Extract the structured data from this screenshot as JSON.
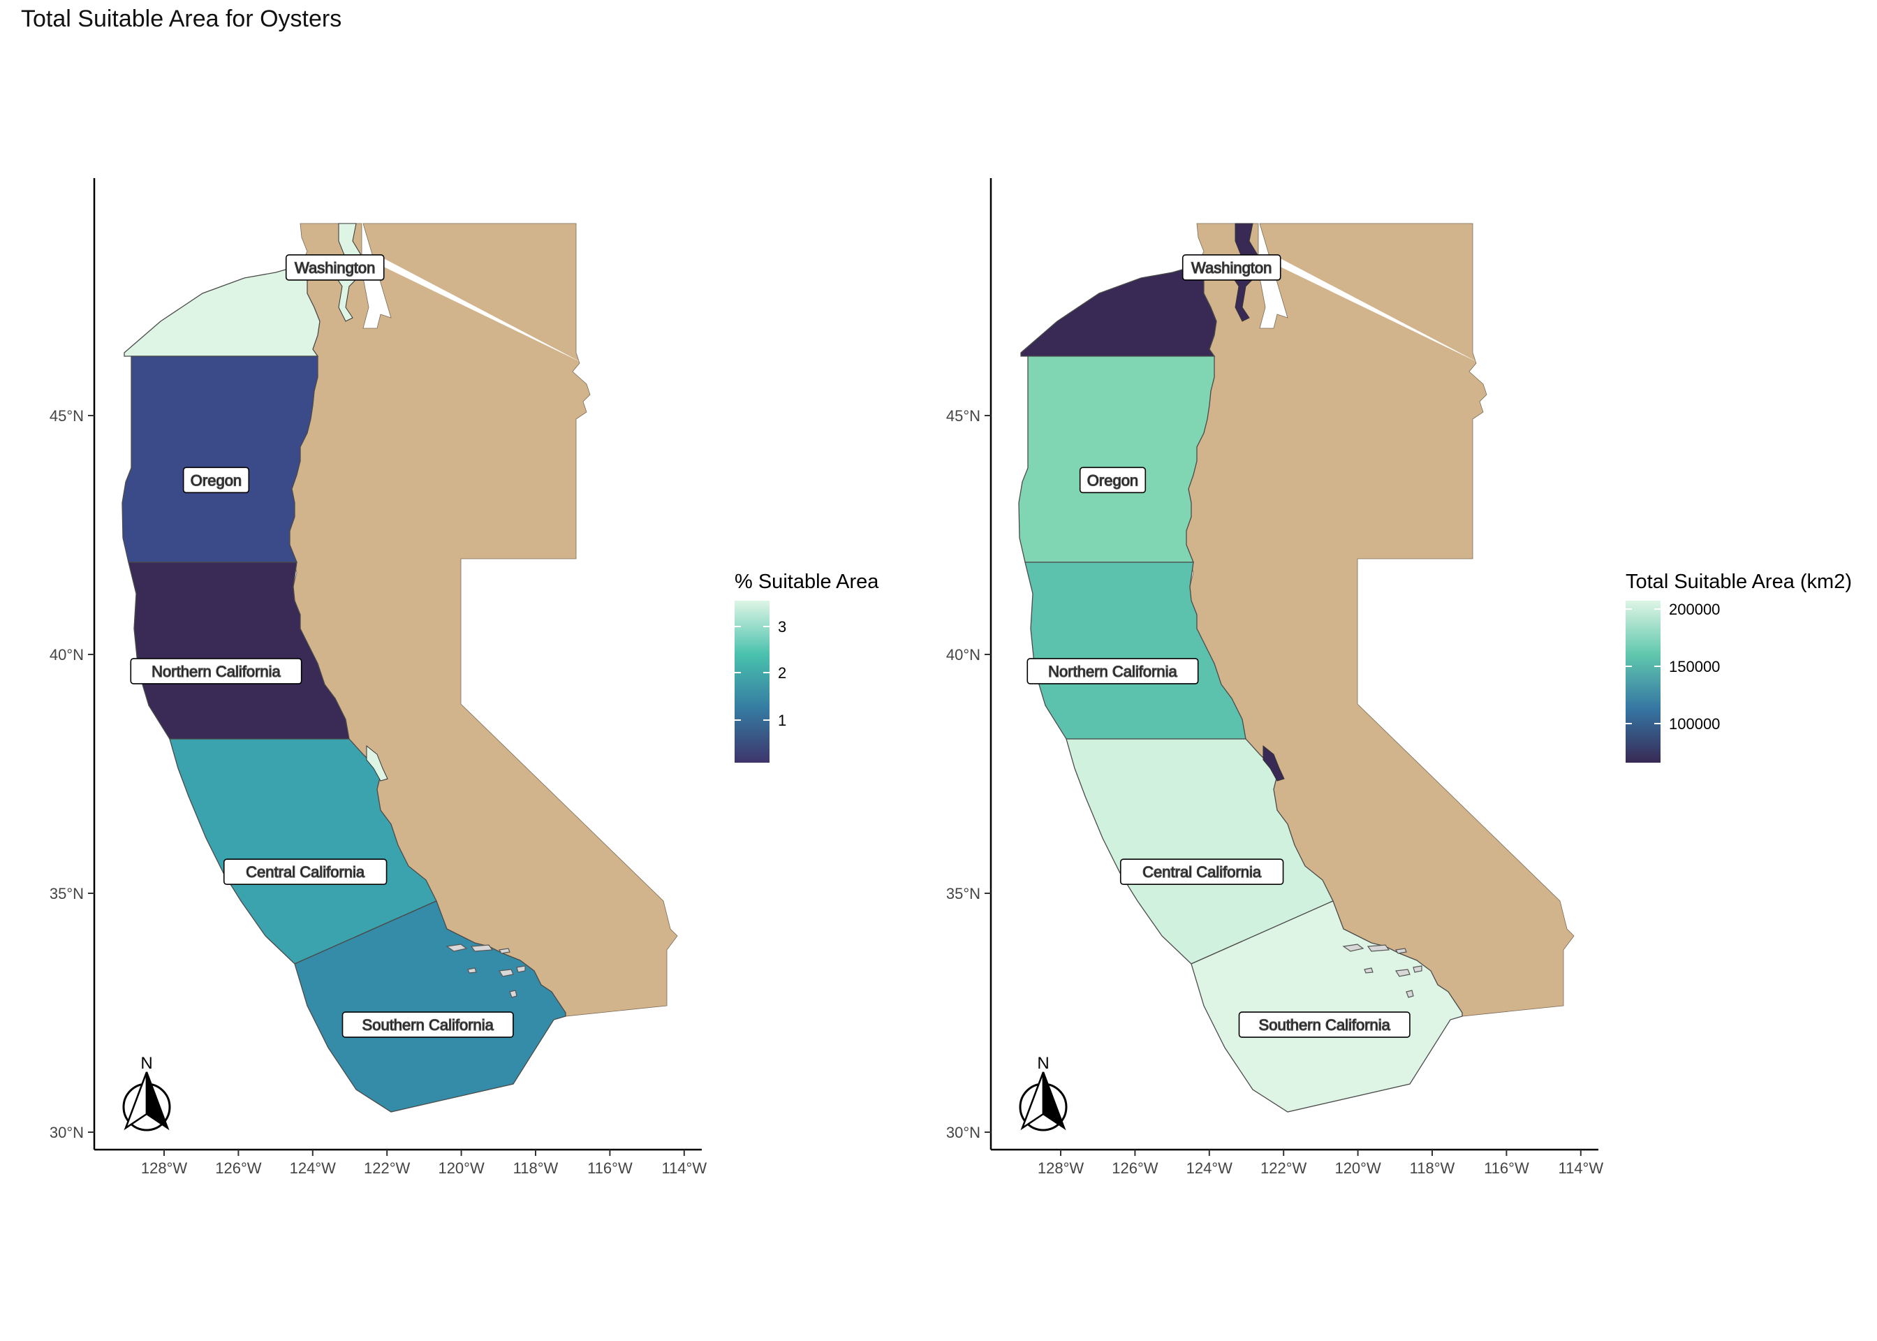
{
  "title": "Total Suitable Area for Oysters",
  "land_color": "#D2B48C",
  "x_ticks": [
    "128°W",
    "126°W",
    "124°W",
    "122°W",
    "120°W",
    "118°W",
    "116°W",
    "114°W"
  ],
  "y_ticks": [
    "45°N",
    "40°N",
    "35°N",
    "30°N"
  ],
  "north_label": "N",
  "regions": [
    "Washington",
    "Oregon",
    "Northern California",
    "Central California",
    "Southern California"
  ],
  "panels": [
    {
      "legend_title": "% Suitable Area",
      "legend_ticks": [
        "3",
        "2",
        "1"
      ],
      "legend_gradient": [
        "#def5e5",
        "#49c1ad",
        "#357ba2",
        "#3e356b"
      ],
      "region_colors": {
        "Washington": "#def5e5",
        "Oregon": "#3b4a88",
        "Northern California": "#3a2a56",
        "Central California": "#3aa3ae",
        "Southern California": "#358ca8"
      },
      "inland_water_color": "#def5e5"
    },
    {
      "legend_title": "Total Suitable Area (km2)",
      "legend_ticks": [
        "200000",
        "150000",
        "100000"
      ],
      "legend_gradient": [
        "#def5e5",
        "#60c7ad",
        "#3576a3",
        "#382a55"
      ],
      "region_colors": {
        "Washington": "#382a55",
        "Oregon": "#80d6b3",
        "Northern California": "#5dc2ad",
        "Central California": "#d1f1df",
        "Southern California": "#def5e5"
      },
      "inland_water_color": "#382a55"
    }
  ]
}
